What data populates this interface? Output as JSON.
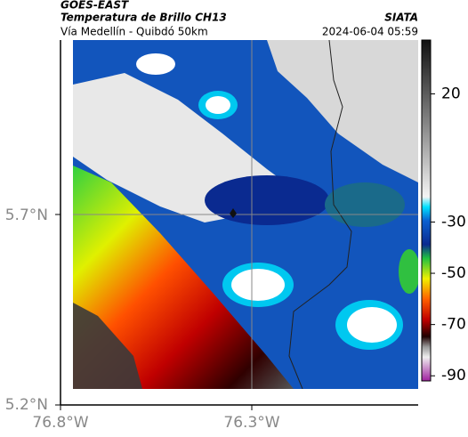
{
  "header": {
    "product": "GOES-EAST",
    "title": "Temperatura de Brillo CH13",
    "subtitle": "Vía Medellín - Quibdó 50km",
    "source": "SIATA",
    "datetime": "2024-06-04 05:59"
  },
  "map": {
    "lat_labels": [
      "5.7°N",
      "5.2°N"
    ],
    "lon_labels": [
      "76.8°W",
      "76.3°W"
    ]
  },
  "colorbar": {
    "range": [
      -92,
      41
    ],
    "ticks": [
      20,
      -30,
      -50,
      -70,
      -90
    ]
  }
}
